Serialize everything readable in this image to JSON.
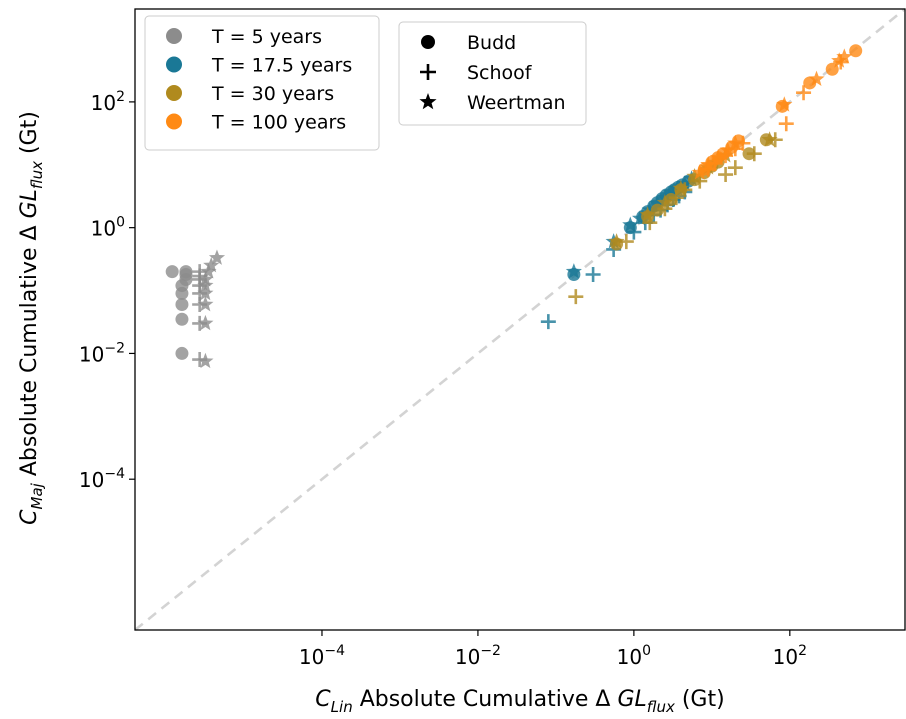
{
  "chart_data": {
    "type": "scatter",
    "x_scale": "log",
    "y_scale": "log",
    "xlim": [
      4e-07,
      3000
    ],
    "ylim": [
      4e-07,
      3000
    ],
    "x_ticks": [
      {
        "value": 0.0001,
        "base": "10",
        "exp": "−4"
      },
      {
        "value": 0.01,
        "base": "10",
        "exp": "−2"
      },
      {
        "value": 1,
        "base": "10",
        "exp": "0"
      },
      {
        "value": 100,
        "base": "10",
        "exp": "2"
      }
    ],
    "y_ticks": [
      {
        "value": 0.0001,
        "base": "10",
        "exp": "−4"
      },
      {
        "value": 0.01,
        "base": "10",
        "exp": "−2"
      },
      {
        "value": 1,
        "base": "10",
        "exp": "0"
      },
      {
        "value": 100,
        "base": "10",
        "exp": "2"
      }
    ],
    "xlabel": {
      "symbol": "C",
      "symbol_sub": "Lin",
      "middle": " Absolute Cumulative Δ ",
      "var": "GL",
      "var_sub": "flux",
      "unit": " (Gt)"
    },
    "ylabel": {
      "symbol": "C",
      "symbol_sub": "Maj",
      "middle": " Absolute Cumulative Δ ",
      "var": "GL",
      "var_sub": "flux",
      "unit": " (Gt)"
    },
    "reference_line": {
      "type": "y=x",
      "style": "dashed",
      "color": "#d3d3d3"
    },
    "grid": false,
    "legend_colors": {
      "placement": "top-left",
      "entries": [
        {
          "label": "T = 5 years",
          "color": "#8c8c8c"
        },
        {
          "label": "T = 17.5 years",
          "color": "#1a7896"
        },
        {
          "label": "T = 30 years",
          "color": "#b08a1e"
        },
        {
          "label": "T = 100 years",
          "color": "#ff8a14"
        }
      ]
    },
    "legend_markers": {
      "placement": "top-center-left",
      "entries": [
        {
          "label": "Budd",
          "marker": "circle"
        },
        {
          "label": "Schoof",
          "marker": "plus"
        },
        {
          "label": "Weertman",
          "marker": "star"
        }
      ]
    },
    "series": [
      {
        "period": "T = 5 years",
        "law": "Budd",
        "color": "#8c8c8c",
        "points": [
          [
            1.2e-06,
            0.2
          ],
          [
            1.6e-06,
            0.01
          ],
          [
            1.6e-06,
            0.035
          ],
          [
            1.6e-06,
            0.06
          ],
          [
            1.6e-06,
            0.09
          ],
          [
            1.6e-06,
            0.12
          ],
          [
            1.8e-06,
            0.15
          ],
          [
            1.8e-06,
            0.18
          ],
          [
            1.8e-06,
            0.2
          ]
        ]
      },
      {
        "period": "T = 5 years",
        "law": "Schoof",
        "color": "#8c8c8c",
        "points": [
          [
            2.7e-06,
            0.008
          ],
          [
            2.7e-06,
            0.03
          ],
          [
            2.7e-06,
            0.06
          ],
          [
            2.7e-06,
            0.09
          ],
          [
            2.7e-06,
            0.12
          ],
          [
            2.7e-06,
            0.15
          ],
          [
            2.7e-06,
            0.17
          ],
          [
            2.7e-06,
            0.2
          ]
        ]
      },
      {
        "period": "T = 5 years",
        "law": "Weertman",
        "color": "#8c8c8c",
        "points": [
          [
            3.2e-06,
            0.0075
          ],
          [
            3.2e-06,
            0.03
          ],
          [
            3.2e-06,
            0.06
          ],
          [
            3.2e-06,
            0.09
          ],
          [
            3.2e-06,
            0.12
          ],
          [
            3.2e-06,
            0.15
          ],
          [
            3.5e-06,
            0.2
          ],
          [
            3.8e-06,
            0.25
          ],
          [
            4.5e-06,
            0.33
          ]
        ]
      },
      {
        "period": "T = 17.5 years",
        "law": "Budd",
        "color": "#1a7896",
        "points": [
          [
            0.17,
            0.18
          ],
          [
            0.9,
            1.0
          ],
          [
            1.3,
            1.5
          ],
          [
            1.5,
            1.8
          ],
          [
            1.8,
            2.2
          ],
          [
            2.0,
            2.5
          ],
          [
            2.3,
            2.9
          ],
          [
            2.6,
            3.3
          ],
          [
            3.0,
            3.7
          ],
          [
            3.3,
            4.0
          ],
          [
            3.7,
            4.4
          ],
          [
            4.2,
            4.8
          ],
          [
            5.0,
            5.5
          ]
        ]
      },
      {
        "period": "T = 17.5 years",
        "law": "Schoof",
        "color": "#1a7896",
        "points": [
          [
            0.08,
            0.032
          ],
          [
            0.3,
            0.18
          ],
          [
            0.55,
            0.45
          ],
          [
            1.0,
            0.85
          ],
          [
            1.4,
            1.2
          ],
          [
            1.8,
            1.6
          ],
          [
            2.2,
            1.9
          ],
          [
            2.7,
            2.3
          ],
          [
            3.2,
            2.8
          ],
          [
            3.8,
            3.2
          ],
          [
            4.5,
            3.7
          ]
        ]
      },
      {
        "period": "T = 17.5 years",
        "law": "Weertman",
        "color": "#1a7896",
        "points": [
          [
            0.17,
            0.2
          ],
          [
            0.55,
            0.6
          ],
          [
            0.9,
            1.1
          ],
          [
            1.2,
            1.4
          ],
          [
            1.6,
            1.9
          ],
          [
            2.0,
            2.4
          ],
          [
            2.5,
            3.0
          ],
          [
            3.0,
            3.6
          ],
          [
            3.6,
            4.2
          ],
          [
            4.5,
            5.0
          ],
          [
            5.5,
            6.0
          ]
        ]
      },
      {
        "period": "T = 30 years",
        "law": "Budd",
        "color": "#b08a1e",
        "points": [
          [
            0.6,
            0.55
          ],
          [
            1.5,
            1.5
          ],
          [
            2.0,
            1.9
          ],
          [
            3.0,
            2.8
          ],
          [
            4.0,
            4.0
          ],
          [
            6.0,
            5.8
          ],
          [
            8.0,
            7.5
          ],
          [
            10.0,
            9.5
          ],
          [
            12.0,
            11.0
          ],
          [
            30.0,
            15.0
          ],
          [
            50.0,
            25.0
          ]
        ]
      },
      {
        "period": "T = 30 years",
        "law": "Schoof",
        "color": "#b08a1e",
        "points": [
          [
            0.18,
            0.08
          ],
          [
            0.8,
            0.6
          ],
          [
            1.6,
            1.2
          ],
          [
            2.5,
            2.0
          ],
          [
            3.5,
            3.0
          ],
          [
            4.5,
            4.0
          ],
          [
            7.0,
            5.5
          ],
          [
            15.0,
            7.0
          ],
          [
            20.0,
            9.0
          ],
          [
            35.0,
            15.0
          ],
          [
            65.0,
            25.0
          ]
        ]
      },
      {
        "period": "T = 30 years",
        "law": "Weertman",
        "color": "#b08a1e",
        "points": [
          [
            0.6,
            0.6
          ],
          [
            1.5,
            1.6
          ],
          [
            2.5,
            2.5
          ],
          [
            4.0,
            4.2
          ],
          [
            6.0,
            6.5
          ],
          [
            9.0,
            9.0
          ],
          [
            15.0,
            14.0
          ],
          [
            55.0,
            25.0
          ]
        ]
      },
      {
        "period": "T = 100 years",
        "law": "Budd",
        "color": "#ff8a14",
        "points": [
          [
            8.0,
            8.5
          ],
          [
            10.0,
            11.0
          ],
          [
            12.0,
            13.0
          ],
          [
            14.0,
            15.0
          ],
          [
            18.0,
            19.0
          ],
          [
            22.0,
            24.0
          ],
          [
            80.0,
            85.0
          ],
          [
            180.0,
            200.0
          ],
          [
            350.0,
            330.0
          ],
          [
            700.0,
            650.0
          ]
        ]
      },
      {
        "period": "T = 100 years",
        "law": "Schoof",
        "color": "#ff8a14",
        "points": [
          [
            9.0,
            8.5
          ],
          [
            11.0,
            10.5
          ],
          [
            15.0,
            14.0
          ],
          [
            20.0,
            18.0
          ],
          [
            25.0,
            22.0
          ],
          [
            90.0,
            45.0
          ],
          [
            150.0,
            140.0
          ],
          [
            450.0,
            430.0
          ]
        ]
      },
      {
        "period": "T = 100 years",
        "law": "Weertman",
        "color": "#ff8a14",
        "points": [
          [
            7.0,
            7.5
          ],
          [
            9.0,
            10.0
          ],
          [
            12.0,
            13.0
          ],
          [
            16.0,
            17.0
          ],
          [
            20.0,
            22.0
          ],
          [
            85.0,
            90.0
          ],
          [
            220.0,
            230.0
          ],
          [
            430.0,
            450.0
          ],
          [
            500.0,
            520.0
          ]
        ]
      }
    ]
  }
}
